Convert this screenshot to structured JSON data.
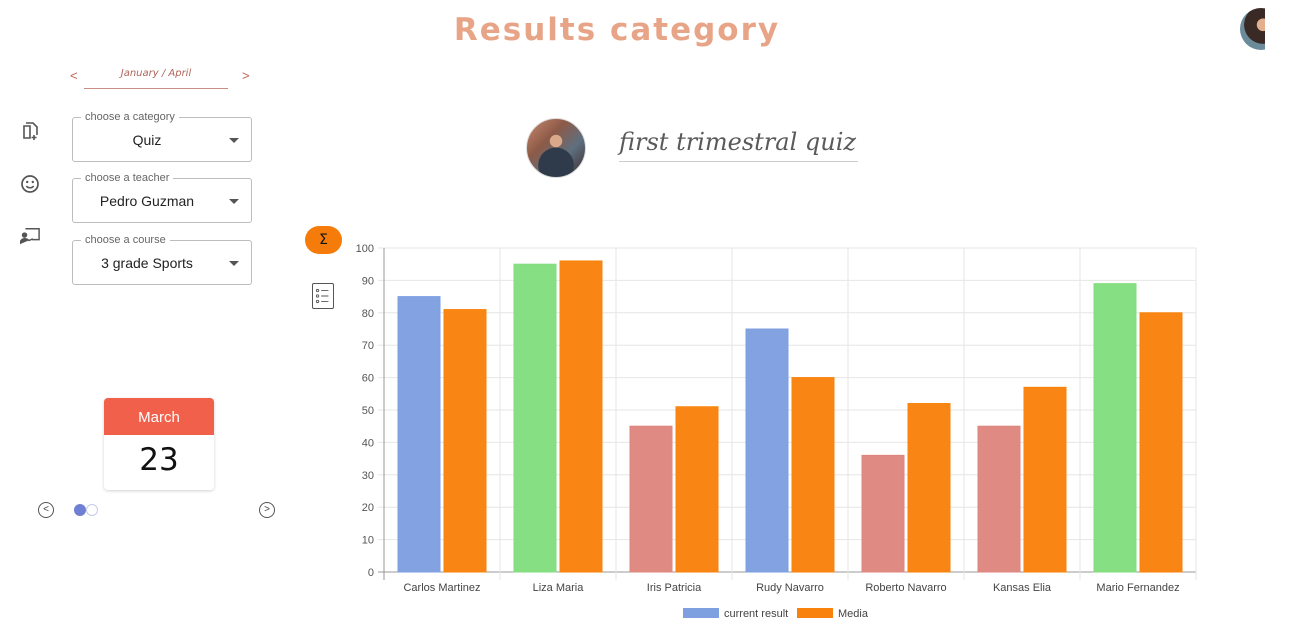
{
  "header": {
    "title": "Results category"
  },
  "period": {
    "label": "January / April",
    "prev": "<",
    "next": ">"
  },
  "filters": [
    {
      "legend": "choose a category",
      "value": "Quiz"
    },
    {
      "legend": "choose a teacher",
      "value": "Pedro Guzman"
    },
    {
      "legend": "choose a course",
      "value": "3 grade Sports"
    }
  ],
  "calendar": {
    "month": "March",
    "day": "23",
    "month_color": "#F1604A"
  },
  "carousel": {
    "prev": "<",
    "next": ">"
  },
  "quiz": {
    "title": "first trimestral quiz"
  },
  "tools": {
    "sigma": "Σ"
  },
  "icons": [
    "add-document-icon",
    "smiley-icon",
    "teacher-board-icon",
    "sigma-icon",
    "list-icon"
  ],
  "chart_data": {
    "type": "bar",
    "categories": [
      "Carlos Martinez",
      "Liza Maria",
      "Iris Patricia",
      "Rudy Navarro",
      "Roberto Navarro",
      "Kansas Elia",
      "Mario Fernandez"
    ],
    "series": [
      {
        "name": "current result",
        "values": [
          85,
          95,
          45,
          75,
          36,
          45,
          89
        ],
        "color": "#7E9FE0",
        "point_colors": [
          "#7E9FE0",
          "#82DE7E",
          "#DE867E",
          "#7E9FE0",
          "#DE867E",
          "#DE867E",
          "#82DE7E"
        ]
      },
      {
        "name": "Media",
        "values": [
          81,
          96,
          51,
          60,
          52,
          57,
          80
        ],
        "color": "#F9820C"
      }
    ],
    "ylim": [
      0,
      100
    ],
    "yticks": [
      0,
      10,
      20,
      30,
      40,
      50,
      60,
      70,
      80,
      90,
      100
    ],
    "grid": true,
    "legend": "bottom"
  }
}
